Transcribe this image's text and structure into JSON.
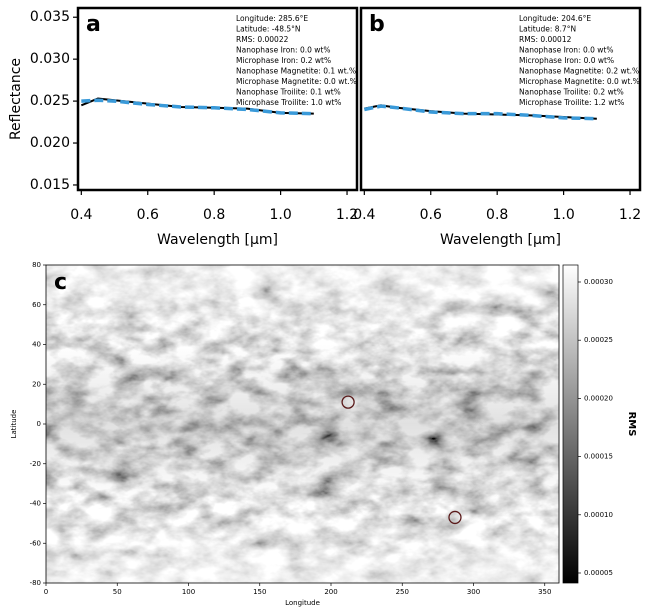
{
  "chart_data": [
    {
      "type": "line",
      "panel_label": "a",
      "ylabel": "Reflectance",
      "xlabel": "Wavelength [μm]",
      "x": [
        0.4,
        0.45,
        0.5,
        0.6,
        0.7,
        0.8,
        0.9,
        1.0,
        1.1
      ],
      "series": [
        {
          "color": "#000000",
          "style": "solid",
          "values": [
            0.0245,
            0.0253,
            0.0251,
            0.0247,
            0.0243,
            0.0242,
            0.0241,
            0.0236,
            0.0235
          ]
        },
        {
          "color": "#3a9ad9",
          "style": "dashed",
          "values": [
            0.025,
            0.0251,
            0.025,
            0.0246,
            0.0243,
            0.0242,
            0.024,
            0.0236,
            0.0235
          ]
        }
      ],
      "annotation": [
        "Longitude: 285.6°E",
        "Latitude: -48.5°N",
        "RMS: 0.00022",
        "Nanophase Iron: 0.0 wt%",
        "Microphase Iron: 0.2 wt%",
        "Nanophase Magnetite: 0.1 wt.%",
        "Microphase Magnetite: 0.0 wt.%",
        "Nanophase Troilite: 0.1 wt%",
        "Microphase Troilite: 1.0 wt%"
      ],
      "xlim": [
        0.39,
        1.23
      ],
      "xticks": [
        0.4,
        0.6,
        0.8,
        {
          "value": 1.0,
          "label": "1.0"
        },
        1.2
      ],
      "ylim": [
        0.0144,
        0.0361
      ],
      "yticks": [
        0.015,
        {
          "value": 0.02,
          "label": "0.020"
        },
        0.025,
        {
          "value": 0.03,
          "label": "0.030"
        },
        0.035
      ]
    },
    {
      "type": "line",
      "panel_label": "b",
      "xlabel": "Wavelength [μm]",
      "x": [
        0.4,
        0.45,
        0.5,
        0.6,
        0.7,
        0.8,
        0.9,
        1.0,
        1.1
      ],
      "series": [
        {
          "color": "#000000",
          "style": "solid",
          "values": [
            0.0241,
            0.0245,
            0.0242,
            0.0238,
            0.0235,
            0.0234,
            0.0233,
            0.0231,
            0.0229
          ]
        },
        {
          "color": "#3a9ad9",
          "style": "dashed",
          "values": [
            0.024,
            0.0244,
            0.0242,
            0.0237,
            0.0235,
            0.0235,
            0.0233,
            0.023,
            0.0229
          ]
        }
      ],
      "annotation": [
        "Longitude: 204.6°E",
        "Latitude: 8.7°N",
        "RMS: 0.00012",
        "Nanophase Iron: 0.0 wt%",
        "Microphase Iron: 0.0 wt%",
        "Nanophase Magnetite: 0.2 wt.%",
        "Microphase Magnetite: 0.0 wt.%",
        "Nanophase Troilite: 0.2 wt%",
        "Microphase Troilite: 1.2 wt%"
      ],
      "xlim": [
        0.39,
        1.23
      ],
      "xticks": [
        0.4,
        0.6,
        0.8,
        {
          "value": 1.0,
          "label": "1.0"
        },
        1.2
      ],
      "ylim": [
        0.0144,
        0.0361
      ]
    },
    {
      "type": "heatmap",
      "panel_label": "c",
      "xlabel": "Longitude",
      "ylabel": "Latitude",
      "colorbar_label": "RMS",
      "markers": {
        "color": "#5a1a1a",
        "x": [
          212,
          287
        ],
        "y": [
          11,
          -47
        ]
      },
      "xlim": [
        0,
        360
      ],
      "xticks": [
        0,
        50,
        100,
        150,
        200,
        250,
        300,
        350
      ],
      "ylim": [
        -80,
        80
      ],
      "yticks": [
        -80,
        -60,
        -40,
        -20,
        0,
        20,
        40,
        60,
        80
      ],
      "clim": [
        4.14e-05,
        0.0003146
      ],
      "cticks": [
        5e-05,
        {
          "value": 0.0001,
          "label": "0.00010"
        },
        0.00015,
        {
          "value": 0.0002,
          "label": "0.00020"
        },
        0.00025,
        {
          "value": 0.0003,
          "label": "0.00030"
        }
      ]
    }
  ]
}
